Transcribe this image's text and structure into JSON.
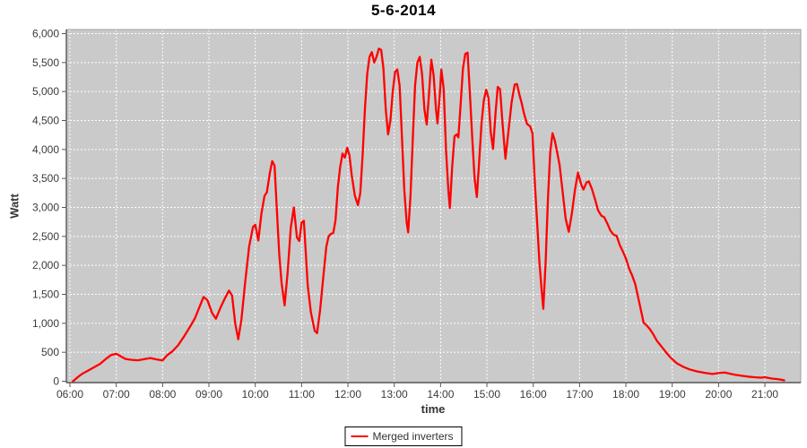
{
  "chart": {
    "title": "5-6-2014",
    "x_axis_label": "time",
    "y_axis_label": "Watt"
  },
  "chart_data": {
    "type": "line",
    "title": "5-6-2014",
    "xlabel": "time",
    "ylabel": "Watt",
    "grid": true,
    "legend_position": "bottom-center",
    "plot_background": "#cacaca",
    "gridline_color": "#ffffff",
    "axis_color": "#555555",
    "border_color": "#9e9e9e",
    "tick_label_color": "#3a3a3a",
    "ylim": [
      0,
      6000
    ],
    "y_tick_values": [
      0,
      500,
      1000,
      1500,
      2000,
      2500,
      3000,
      3500,
      4000,
      4500,
      5000,
      5500,
      6000
    ],
    "y_tick_labels": [
      "0",
      "500",
      "1,000",
      "1,500",
      "2,000",
      "2,500",
      "3,000",
      "3,500",
      "4,000",
      "4,500",
      "5,000",
      "5,500",
      "6,000"
    ],
    "x_ticks": [
      "06:00",
      "07:00",
      "08:00",
      "09:00",
      "10:00",
      "11:00",
      "12:00",
      "13:00",
      "14:00",
      "15:00",
      "16:00",
      "17:00",
      "18:00",
      "19:00",
      "20:00",
      "21:00"
    ],
    "series": [
      {
        "name": "Merged inverters",
        "color": "#ff0000",
        "points": [
          [
            "06:04",
            0
          ],
          [
            "06:10",
            70
          ],
          [
            "06:16",
            130
          ],
          [
            "06:23",
            180
          ],
          [
            "06:31",
            240
          ],
          [
            "06:39",
            300
          ],
          [
            "06:47",
            390
          ],
          [
            "06:53",
            450
          ],
          [
            "07:00",
            475
          ],
          [
            "07:06",
            430
          ],
          [
            "07:12",
            385
          ],
          [
            "07:20",
            370
          ],
          [
            "07:28",
            362
          ],
          [
            "07:36",
            380
          ],
          [
            "07:44",
            400
          ],
          [
            "07:52",
            378
          ],
          [
            "08:00",
            360
          ],
          [
            "08:06",
            450
          ],
          [
            "08:13",
            520
          ],
          [
            "08:20",
            620
          ],
          [
            "08:28",
            780
          ],
          [
            "08:35",
            930
          ],
          [
            "08:42",
            1090
          ],
          [
            "08:48",
            1290
          ],
          [
            "08:53",
            1455
          ],
          [
            "08:58",
            1400
          ],
          [
            "09:04",
            1180
          ],
          [
            "09:09",
            1080
          ],
          [
            "09:15",
            1270
          ],
          [
            "09:21",
            1440
          ],
          [
            "09:26",
            1565
          ],
          [
            "09:30",
            1480
          ],
          [
            "09:34",
            1000
          ],
          [
            "09:38",
            725
          ],
          [
            "09:42",
            1060
          ],
          [
            "09:47",
            1720
          ],
          [
            "09:52",
            2320
          ],
          [
            "09:57",
            2660
          ],
          [
            "10:00",
            2700
          ],
          [
            "10:04",
            2430
          ],
          [
            "10:08",
            2900
          ],
          [
            "10:12",
            3200
          ],
          [
            "10:15",
            3260
          ],
          [
            "10:19",
            3600
          ],
          [
            "10:22",
            3800
          ],
          [
            "10:25",
            3720
          ],
          [
            "10:28",
            2950
          ],
          [
            "10:31",
            2200
          ],
          [
            "10:34",
            1700
          ],
          [
            "10:38",
            1310
          ],
          [
            "10:42",
            1880
          ],
          [
            "10:46",
            2650
          ],
          [
            "10:50",
            3000
          ],
          [
            "10:54",
            2480
          ],
          [
            "10:57",
            2420
          ],
          [
            "11:00",
            2740
          ],
          [
            "11:03",
            2770
          ],
          [
            "11:08",
            1650
          ],
          [
            "11:12",
            1190
          ],
          [
            "11:17",
            870
          ],
          [
            "11:20",
            830
          ],
          [
            "11:24",
            1230
          ],
          [
            "11:28",
            1790
          ],
          [
            "11:32",
            2320
          ],
          [
            "11:35",
            2500
          ],
          [
            "11:38",
            2545
          ],
          [
            "11:41",
            2560
          ],
          [
            "11:44",
            2780
          ],
          [
            "11:47",
            3350
          ],
          [
            "11:50",
            3700
          ],
          [
            "11:53",
            3930
          ],
          [
            "11:56",
            3860
          ],
          [
            "11:59",
            4030
          ],
          [
            "12:02",
            3900
          ],
          [
            "12:05",
            3550
          ],
          [
            "12:09",
            3200
          ],
          [
            "12:13",
            3040
          ],
          [
            "12:16",
            3250
          ],
          [
            "12:19",
            3900
          ],
          [
            "12:22",
            4700
          ],
          [
            "12:25",
            5300
          ],
          [
            "12:28",
            5600
          ],
          [
            "12:31",
            5680
          ],
          [
            "12:34",
            5500
          ],
          [
            "12:37",
            5600
          ],
          [
            "12:40",
            5740
          ],
          [
            "12:43",
            5720
          ],
          [
            "12:46",
            5400
          ],
          [
            "12:49",
            4700
          ],
          [
            "12:52",
            4260
          ],
          [
            "12:55",
            4500
          ],
          [
            "12:58",
            5000
          ],
          [
            "13:01",
            5340
          ],
          [
            "13:04",
            5380
          ],
          [
            "13:07",
            5100
          ],
          [
            "13:10",
            4200
          ],
          [
            "13:13",
            3300
          ],
          [
            "13:16",
            2750
          ],
          [
            "13:18",
            2570
          ],
          [
            "13:21",
            3200
          ],
          [
            "13:24",
            4200
          ],
          [
            "13:27",
            5100
          ],
          [
            "13:30",
            5500
          ],
          [
            "13:33",
            5600
          ],
          [
            "13:36",
            5300
          ],
          [
            "13:39",
            4700
          ],
          [
            "13:42",
            4430
          ],
          [
            "13:45",
            4950
          ],
          [
            "13:48",
            5550
          ],
          [
            "13:51",
            5280
          ],
          [
            "13:54",
            4700
          ],
          [
            "13:56",
            4450
          ],
          [
            "13:59",
            4950
          ],
          [
            "14:01",
            5380
          ],
          [
            "14:04",
            5050
          ],
          [
            "14:07",
            4000
          ],
          [
            "14:10",
            3300
          ],
          [
            "14:12",
            2990
          ],
          [
            "14:15",
            3700
          ],
          [
            "14:18",
            4230
          ],
          [
            "14:21",
            4260
          ],
          [
            "14:23",
            4210
          ],
          [
            "14:26",
            4800
          ],
          [
            "14:29",
            5400
          ],
          [
            "14:32",
            5650
          ],
          [
            "14:35",
            5670
          ],
          [
            "14:38",
            4950
          ],
          [
            "14:41",
            4190
          ],
          [
            "14:44",
            3500
          ],
          [
            "14:47",
            3180
          ],
          [
            "14:50",
            3800
          ],
          [
            "14:53",
            4450
          ],
          [
            "14:56",
            4850
          ],
          [
            "14:59",
            5030
          ],
          [
            "15:02",
            4890
          ],
          [
            "15:05",
            4300
          ],
          [
            "15:08",
            4010
          ],
          [
            "15:11",
            4600
          ],
          [
            "15:14",
            5080
          ],
          [
            "15:17",
            5040
          ],
          [
            "15:20",
            4480
          ],
          [
            "15:24",
            3840
          ],
          [
            "15:28",
            4320
          ],
          [
            "15:32",
            4820
          ],
          [
            "15:36",
            5120
          ],
          [
            "15:39",
            5130
          ],
          [
            "15:42",
            4950
          ],
          [
            "15:45",
            4800
          ],
          [
            "15:48",
            4620
          ],
          [
            "15:52",
            4440
          ],
          [
            "15:56",
            4400
          ],
          [
            "15:59",
            4280
          ],
          [
            "16:02",
            3450
          ],
          [
            "16:05",
            2750
          ],
          [
            "16:08",
            2050
          ],
          [
            "16:11",
            1550
          ],
          [
            "16:13",
            1250
          ],
          [
            "16:16",
            2050
          ],
          [
            "16:19",
            3150
          ],
          [
            "16:22",
            3950
          ],
          [
            "16:25",
            4280
          ],
          [
            "16:28",
            4150
          ],
          [
            "16:31",
            3950
          ],
          [
            "16:34",
            3740
          ],
          [
            "16:38",
            3280
          ],
          [
            "16:42",
            2800
          ],
          [
            "16:46",
            2580
          ],
          [
            "16:50",
            2900
          ],
          [
            "16:54",
            3300
          ],
          [
            "16:58",
            3600
          ],
          [
            "17:02",
            3400
          ],
          [
            "17:05",
            3310
          ],
          [
            "17:09",
            3430
          ],
          [
            "17:12",
            3450
          ],
          [
            "17:16",
            3320
          ],
          [
            "17:20",
            3140
          ],
          [
            "17:24",
            2950
          ],
          [
            "17:28",
            2860
          ],
          [
            "17:32",
            2830
          ],
          [
            "17:36",
            2720
          ],
          [
            "17:40",
            2600
          ],
          [
            "17:44",
            2530
          ],
          [
            "17:48",
            2510
          ],
          [
            "17:52",
            2350
          ],
          [
            "17:56",
            2240
          ],
          [
            "18:00",
            2120
          ],
          [
            "18:04",
            1950
          ],
          [
            "18:08",
            1830
          ],
          [
            "18:12",
            1680
          ],
          [
            "18:16",
            1440
          ],
          [
            "18:20",
            1190
          ],
          [
            "18:23",
            1010
          ],
          [
            "18:27",
            960
          ],
          [
            "18:31",
            900
          ],
          [
            "18:35",
            820
          ],
          [
            "18:40",
            700
          ],
          [
            "18:46",
            600
          ],
          [
            "18:52",
            500
          ],
          [
            "18:58",
            405
          ],
          [
            "19:06",
            310
          ],
          [
            "19:14",
            250
          ],
          [
            "19:22",
            205
          ],
          [
            "19:32",
            170
          ],
          [
            "19:42",
            145
          ],
          [
            "19:52",
            125
          ],
          [
            "20:02",
            145
          ],
          [
            "20:08",
            150
          ],
          [
            "20:15",
            130
          ],
          [
            "20:22",
            110
          ],
          [
            "20:30",
            95
          ],
          [
            "20:38",
            80
          ],
          [
            "20:46",
            70
          ],
          [
            "20:55",
            62
          ],
          [
            "21:00",
            70
          ],
          [
            "21:05",
            55
          ],
          [
            "21:10",
            45
          ],
          [
            "21:15",
            38
          ],
          [
            "21:20",
            30
          ],
          [
            "21:25",
            15
          ]
        ]
      }
    ]
  }
}
